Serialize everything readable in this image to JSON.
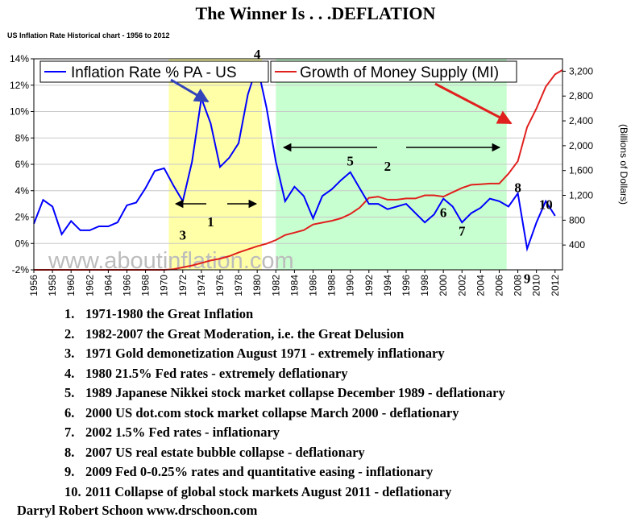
{
  "title": "The Winner Is . . .DEFLATION",
  "subtitle": "US Inflation Rate Historical chart - 1956 to 2012",
  "watermark": "www.aboutinflation.com",
  "notes": [
    {
      "num": "1.",
      "text": "1971-1980 the Great Inflation"
    },
    {
      "num": "2.",
      "text": "1982-2007 the Great Moderation, i.e. the Great Delusion"
    },
    {
      "num": "3.",
      "text": "1971 Gold demonetization August 1971 - extremely inflationary"
    },
    {
      "num": "4.",
      "text": "1980 21.5% Fed rates - extremely deflationary"
    },
    {
      "num": "5.",
      "text": "1989 Japanese Nikkei stock market collapse December 1989 - deflationary"
    },
    {
      "num": "6.",
      "text": "2000 US dot.com stock market collapse March 2000 - deflationary"
    },
    {
      "num": "7.",
      "text": "2002 1.5% Fed rates - inflationary"
    },
    {
      "num": "8.",
      "text": "2007 US real estate bubble collapse - deflationary"
    },
    {
      "num": "9.",
      "text": "2009 Fed 0-0.25% rates and quantitative easing - inflationary"
    },
    {
      "num": "10.",
      "text": "2011 Collapse of global stock markets August 2011 - deflationary"
    }
  ],
  "credit": "Darryl Robert Schoon www.drschoon.com",
  "colors": {
    "inflation": "#0000ff",
    "money": "#e0201e",
    "great_inflation_band": "#ffffa8",
    "great_moderation_band": "#c8ffd0"
  },
  "chart_data": {
    "type": "line",
    "xlim": [
      1956,
      2012.8
    ],
    "x_ticks": [
      "1956",
      "1958",
      "1960",
      "1962",
      "1964",
      "1966",
      "1968",
      "1970",
      "1972",
      "1974",
      "1976",
      "1978",
      "1980",
      "1982",
      "1984",
      "1986",
      "1988",
      "1990",
      "1992",
      "1994",
      "1996",
      "1998",
      "2000",
      "2002",
      "2004",
      "2006",
      "2008",
      "2010",
      "2012"
    ],
    "y_left": {
      "lim": [
        -2,
        14
      ],
      "ticks": [
        "-2%",
        "0%",
        "2%",
        "4%",
        "6%",
        "8%",
        "10%",
        "12%",
        "14%"
      ]
    },
    "y_right": {
      "lim": [
        0,
        3400
      ],
      "ticks": [
        "400",
        "800",
        "1,200",
        "1,600",
        "2,000",
        "2,400",
        "2,800",
        "3,200"
      ],
      "label": "(Billions of Dollars)"
    },
    "series": [
      {
        "name": "Inflation Rate % PA - US",
        "axis": "left",
        "x": [
          1956,
          1957,
          1958,
          1959,
          1960,
          1961,
          1962,
          1963,
          1964,
          1965,
          1966,
          1967,
          1968,
          1969,
          1970,
          1971,
          1972,
          1973,
          1974,
          1975,
          1976,
          1977,
          1978,
          1979,
          1980,
          1981,
          1982,
          1983,
          1984,
          1985,
          1986,
          1987,
          1988,
          1989,
          1990,
          1991,
          1992,
          1993,
          1994,
          1995,
          1996,
          1997,
          1998,
          1999,
          2000,
          2001,
          2002,
          2003,
          2004,
          2005,
          2006,
          2007,
          2008,
          2009,
          2010,
          2011,
          2012
        ],
        "values": [
          1.5,
          3.3,
          2.8,
          0.7,
          1.7,
          1.0,
          1.0,
          1.3,
          1.3,
          1.6,
          2.9,
          3.1,
          4.2,
          5.5,
          5.7,
          4.4,
          3.2,
          6.2,
          11.0,
          9.1,
          5.8,
          6.5,
          7.6,
          11.3,
          13.5,
          10.3,
          6.2,
          3.2,
          4.3,
          3.6,
          1.9,
          3.6,
          4.1,
          4.8,
          5.4,
          4.2,
          3.0,
          3.0,
          2.6,
          2.8,
          3.0,
          2.3,
          1.6,
          2.2,
          3.4,
          2.8,
          1.6,
          2.3,
          2.7,
          3.4,
          3.2,
          2.8,
          3.8,
          -0.4,
          1.6,
          3.2,
          2.1
        ]
      },
      {
        "name": "Growth of Money Supply (MI)",
        "axis": "right",
        "x": [
          1956,
          1960,
          1965,
          1970,
          1971,
          1972,
          1973,
          1974,
          1975,
          1976,
          1977,
          1978,
          1979,
          1980,
          1981,
          1982,
          1983,
          1984,
          1985,
          1986,
          1987,
          1988,
          1989,
          1990,
          1991,
          1992,
          1993,
          1994,
          1995,
          1996,
          1997,
          1998,
          1999,
          2000,
          2001,
          2002,
          2003,
          2004,
          2005,
          2006,
          2007,
          2008,
          2009,
          2010,
          2011,
          2012,
          2012.8
        ],
        "values": [
          0,
          0,
          0,
          0,
          10,
          40,
          70,
          110,
          150,
          180,
          220,
          280,
          330,
          380,
          420,
          480,
          560,
          600,
          640,
          730,
          760,
          790,
          830,
          900,
          1000,
          1160,
          1180,
          1130,
          1130,
          1150,
          1150,
          1200,
          1200,
          1180,
          1250,
          1320,
          1370,
          1380,
          1390,
          1390,
          1550,
          1750,
          2300,
          2600,
          2950,
          3150,
          3220
        ]
      }
    ],
    "bands": [
      {
        "from": 1970.5,
        "to": 1980.5,
        "name": "great-inflation-band"
      },
      {
        "from": 1982,
        "to": 2006.8,
        "name": "great-moderation-band"
      }
    ],
    "annotations": [
      {
        "text": "1",
        "x": 1975,
        "y": 1.3
      },
      {
        "text": "2",
        "x": 1994,
        "y": 5.5
      },
      {
        "text": "3",
        "x": 1972,
        "y": 0.3
      },
      {
        "text": "4",
        "x": 1980,
        "y": 14.0
      },
      {
        "text": "5",
        "x": 1990,
        "y": 5.9
      },
      {
        "text": "6",
        "x": 2000,
        "y": 2.0
      },
      {
        "text": "7",
        "x": 2002,
        "y": 0.6
      },
      {
        "text": "8",
        "x": 2008,
        "y": 3.9
      },
      {
        "text": "9",
        "x": 2009,
        "y": -3.0
      },
      {
        "text": "10",
        "x": 2011,
        "y": 2.6
      }
    ]
  }
}
